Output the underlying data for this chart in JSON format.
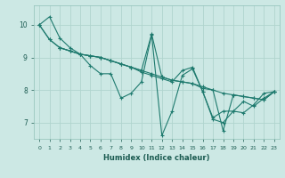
{
  "xlabel": "Humidex (Indice chaleur)",
  "bg_color": "#cce8e4",
  "grid_color": "#b0d4ce",
  "line_color": "#1e7a6e",
  "xlim": [
    -0.5,
    23.5
  ],
  "ylim": [
    6.5,
    10.6
  ],
  "yticks": [
    7,
    8,
    9,
    10
  ],
  "xticks": [
    0,
    1,
    2,
    3,
    4,
    5,
    6,
    7,
    8,
    9,
    10,
    11,
    12,
    13,
    14,
    15,
    16,
    17,
    18,
    19,
    20,
    21,
    22,
    23
  ],
  "series": [
    {
      "x": [
        0,
        1,
        2,
        3,
        4,
        5,
        6,
        7,
        8,
        9,
        10,
        11,
        12,
        13,
        14,
        15,
        16,
        17,
        18,
        19,
        20,
        21,
        22,
        23
      ],
      "y": [
        10.0,
        10.25,
        9.6,
        9.3,
        9.1,
        8.75,
        8.5,
        8.5,
        7.75,
        7.9,
        8.25,
        9.7,
        6.6,
        7.35,
        8.45,
        8.65,
        7.95,
        7.1,
        7.0,
        7.35,
        7.3,
        7.55,
        7.9,
        7.95
      ]
    },
    {
      "x": [
        0,
        1,
        2,
        3,
        4,
        5,
        6,
        7,
        8,
        9,
        10,
        11,
        12,
        13,
        14,
        15,
        16,
        17,
        18,
        19,
        20,
        21,
        22,
        23
      ],
      "y": [
        10.0,
        9.55,
        9.3,
        9.2,
        9.1,
        9.05,
        9.0,
        8.9,
        8.8,
        8.7,
        8.6,
        8.5,
        8.4,
        8.3,
        8.25,
        8.2,
        8.1,
        8.0,
        7.9,
        7.85,
        7.8,
        7.75,
        7.7,
        7.95
      ]
    },
    {
      "x": [
        0,
        1,
        2,
        3,
        4,
        5,
        6,
        7,
        8,
        9,
        10,
        11,
        12,
        13,
        14,
        15,
        16,
        17,
        18,
        19,
        20,
        21,
        22,
        23
      ],
      "y": [
        10.0,
        9.55,
        9.3,
        9.2,
        9.1,
        9.05,
        9.0,
        8.9,
        8.8,
        8.7,
        8.55,
        8.45,
        8.35,
        8.25,
        8.6,
        8.7,
        7.95,
        7.15,
        7.35,
        7.35,
        7.65,
        7.5,
        7.75,
        7.95
      ]
    },
    {
      "x": [
        2,
        3,
        4,
        5,
        6,
        7,
        8,
        9,
        10,
        11,
        12,
        13,
        14,
        15,
        16,
        17,
        18,
        19,
        20,
        21,
        22,
        23
      ],
      "y": [
        9.3,
        9.2,
        9.1,
        9.05,
        9.0,
        8.9,
        8.8,
        8.7,
        8.6,
        9.72,
        8.4,
        8.3,
        8.25,
        8.2,
        8.05,
        8.0,
        6.75,
        7.85,
        7.8,
        7.75,
        7.7,
        7.95
      ]
    }
  ]
}
